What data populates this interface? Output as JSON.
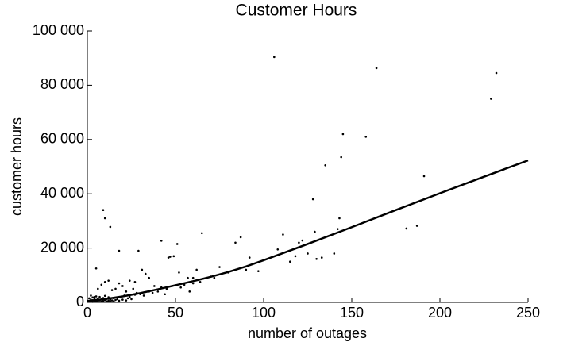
{
  "chart_data": {
    "type": "scatter",
    "title": "Customer Hours",
    "xlabel": "number of outages",
    "ylabel": "customer hours",
    "xlim": [
      0,
      250
    ],
    "ylim": [
      0,
      100000
    ],
    "xticks": [
      0,
      50,
      100,
      150,
      200,
      250
    ],
    "yticks": [
      0,
      {
        "value": 20000,
        "label": "20 000"
      },
      {
        "value": 40000,
        "label": "40 000"
      },
      {
        "value": 60000,
        "label": "60 000"
      },
      {
        "value": 80000,
        "label": "80 000"
      },
      {
        "value": 100000,
        "label": "100 000"
      }
    ],
    "color": "#000000",
    "x": [
      106,
      164,
      232,
      229,
      145,
      158,
      144,
      135,
      128,
      191,
      181,
      187,
      143,
      142,
      129,
      111,
      87,
      84,
      65,
      51,
      42,
      47,
      49,
      46,
      29,
      18,
      9,
      10,
      13,
      108,
      120,
      122,
      118,
      125,
      130,
      133,
      140,
      115,
      92,
      97,
      90,
      80,
      75,
      70,
      62,
      60,
      57,
      55,
      53,
      52,
      45,
      40,
      38,
      35,
      33,
      31,
      27,
      26,
      24,
      22,
      20,
      18,
      16,
      14,
      12,
      10,
      8,
      6,
      5,
      4,
      1,
      1,
      2,
      2,
      2,
      3,
      3,
      3,
      4,
      4,
      5,
      5,
      5,
      6,
      6,
      7,
      7,
      8,
      8,
      9,
      9,
      10,
      10,
      11,
      11,
      12,
      12,
      13,
      13,
      14,
      15,
      15,
      16,
      17,
      18,
      19,
      20,
      21,
      22,
      23,
      24,
      25,
      27,
      28,
      30,
      32,
      35,
      37,
      42,
      44,
      48,
      58,
      60,
      64,
      72
    ],
    "values": [
      90400,
      86300,
      84500,
      75000,
      62000,
      61000,
      53500,
      50500,
      38000,
      46500,
      27200,
      28200,
      31000,
      27000,
      26000,
      25000,
      24000,
      22000,
      25500,
      21500,
      22700,
      16800,
      17000,
      16500,
      19000,
      19000,
      34000,
      31000,
      27800,
      19500,
      22000,
      22800,
      17000,
      18000,
      16000,
      16500,
      18000,
      15000,
      16500,
      11500,
      12000,
      11000,
      13000,
      9500,
      12000,
      9000,
      9000,
      6500,
      5500,
      11000,
      5000,
      4000,
      6000,
      9000,
      10500,
      12000,
      7500,
      5000,
      8000,
      4000,
      6000,
      7000,
      5000,
      4500,
      8000,
      7500,
      6500,
      5000,
      12500,
      2000,
      500,
      1500,
      300,
      1000,
      2500,
      200,
      800,
      1800,
      600,
      1200,
      300,
      900,
      2200,
      400,
      1400,
      700,
      2000,
      300,
      1100,
      500,
      1600,
      800,
      2400,
      400,
      1300,
      600,
      1900,
      300,
      1000,
      700,
      1500,
      400,
      900,
      1200,
      600,
      1800,
      1000,
      2500,
      700,
      1500,
      2000,
      1200,
      2800,
      3500,
      3000,
      2500,
      4000,
      3500,
      5500,
      3000,
      6000,
      4000,
      7000,
      7500,
      9000
    ],
    "fit": {
      "x": [
        0,
        10,
        20,
        30,
        40,
        50,
        60,
        70,
        80,
        90,
        100,
        125,
        150,
        175,
        200,
        225,
        250
      ],
      "values": [
        500,
        1200,
        2200,
        3400,
        4800,
        6300,
        7800,
        9400,
        11200,
        13200,
        15500,
        21500,
        27700,
        34000,
        40200,
        46300,
        52300
      ]
    }
  }
}
